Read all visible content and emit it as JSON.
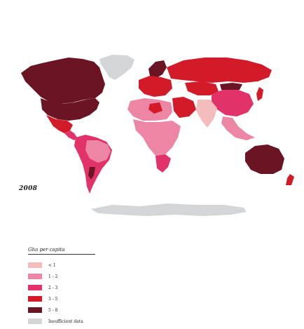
{
  "map": {
    "year": "2008",
    "colors": {
      "lt1": "#f4bcbd",
      "c1to2": "#ec86a4",
      "c2to3": "#e2326a",
      "c3to5": "#d21a28",
      "c5to8": "#6a1424",
      "nodata": "#d3d5d7"
    },
    "regions": [
      {
        "name": "Greenland",
        "class": "nodata"
      },
      {
        "name": "Canada",
        "class": "c5to8"
      },
      {
        "name": "United States",
        "class": "c5to8"
      },
      {
        "name": "Mexico",
        "class": "c3to5"
      },
      {
        "name": "Central America",
        "class": "c2to3"
      },
      {
        "name": "South America",
        "class": "c2to3"
      },
      {
        "name": "Brazil",
        "class": "c2to3"
      },
      {
        "name": "Scandinavia",
        "class": "c5to8"
      },
      {
        "name": "Western Europe",
        "class": "c3to5"
      },
      {
        "name": "Russia",
        "class": "c3to5"
      },
      {
        "name": "Kazakhstan",
        "class": "c3to5"
      },
      {
        "name": "Mongolia",
        "class": "c5to8"
      },
      {
        "name": "China",
        "class": "c2to3"
      },
      {
        "name": "Middle East",
        "class": "c3to5"
      },
      {
        "name": "India",
        "class": "lt1"
      },
      {
        "name": "Southeast Asia",
        "class": "c1to2"
      },
      {
        "name": "North Africa",
        "class": "c1to2"
      },
      {
        "name": "Sub-Saharan Africa",
        "class": "c1to2"
      },
      {
        "name": "Southern Africa",
        "class": "c2to3"
      },
      {
        "name": "Australia",
        "class": "c5to8"
      },
      {
        "name": "New Zealand",
        "class": "c3to5"
      },
      {
        "name": "Antarctica",
        "class": "nodata"
      }
    ]
  },
  "legend": {
    "title": "Gha per capita",
    "items": [
      {
        "label": "< 1",
        "color": "#f4bcbd"
      },
      {
        "label": "1 - 2",
        "color": "#ec86a4"
      },
      {
        "label": "2 - 3",
        "color": "#e2326a"
      },
      {
        "label": "3 - 5",
        "color": "#d21a28"
      },
      {
        "label": "5 - 8",
        "color": "#6a1424"
      },
      {
        "label": "Insufficient data",
        "color": "#d3d5d7"
      }
    ]
  }
}
